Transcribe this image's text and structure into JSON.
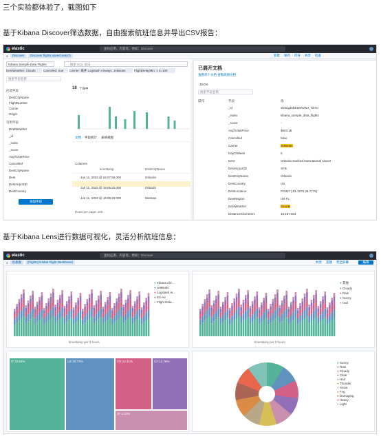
{
  "intro": "三个实验都体验了，截图如下",
  "section1": "基于Kibana Discover筛选数据，自由搜索航班信息并导出CSV报告：",
  "section2": "基于Kibana Lens进行数据可视化，灵活分析航班信息：",
  "kibana": {
    "brand": "elastic",
    "search_placeholder": "查找应用、内容等。例如：Discover",
    "breadcrumb_root": "Discover",
    "breadcrumb_page": "Discover flights saved search",
    "dashboard_crumb": "[Flights] Global Flight Dashboard",
    "dashboard_root": "仪表板",
    "top_links": [
      "新建",
      "保存",
      "打开",
      "共享",
      "检查"
    ],
    "dash_links": [
      "共享",
      "克隆",
      "完全屏幕"
    ],
    "edit_button": "编辑",
    "index_pattern": "Kibana Sample Data Flights",
    "query_placeholder": "搜索 KQL 语法",
    "filter_field": "搜索字段名称",
    "filters": [
      "DestWeather: Clouds",
      "Canceled: true",
      "Carrier: 离开 Logstash Airways, JetBeats",
      "FlightDelayMin: 1 to 100"
    ],
    "selected_header": "已选字段",
    "selected_fields": [
      "DestCityName",
      "FlightNumber",
      "Carrier",
      "Origin"
    ],
    "available_header": "可用字段",
    "available_fields": [
      "DestWeather",
      "_id",
      "_index",
      "_score",
      "AvgTicketPrice",
      "Cancelled",
      "DestCityName",
      "Dest",
      "DestAirportID",
      "DestCountry"
    ],
    "add_field": "添加字段",
    "hit_count": "18",
    "hit_label": "个命中",
    "doc_tabs": [
      "文档",
      "字段统计",
      "表格视图"
    ],
    "doc_columns": [
      "Columns",
      "Sort fields",
      "timestamp",
      "DestCityName",
      "Flight"
    ],
    "rows": [
      {
        "time": "Jun 11, 2023 @ 16:07:56.000",
        "city": "Orlando"
      },
      {
        "time": "Jun 11, 2023 @ 18:05:20.000",
        "city": "Orlando"
      },
      {
        "time": "Jun 11, 2023 @ 16:05:20.000",
        "city": "Warsaw"
      }
    ],
    "rows_per_page": "Rows per page: 100",
    "flyout": {
      "title": "已展开文档",
      "subtitle": "查看单个文档  查看周围文档",
      "tabs": [
        "表",
        "JSON"
      ],
      "filter_ph": "搜索字段名称",
      "col_action": "操作",
      "col_field": "字段",
      "col_value": "值",
      "fields": [
        {
          "k": "_id",
          "v": "sN4ug4kB61ERoWJ_ToHU"
        },
        {
          "k": "_index",
          "v": "kibana_sample_data_flights"
        },
        {
          "k": "_score",
          "v": "-"
        },
        {
          "k": "AvgTicketPrice",
          "v": "$503.18"
        },
        {
          "k": "Cancelled",
          "v": "false"
        },
        {
          "k": "Carrier",
          "v": "JetBeats"
        },
        {
          "k": "DayOfWeek",
          "v": "6"
        },
        {
          "k": "Dest",
          "v": "Orlando Sanford International Airport"
        },
        {
          "k": "DestAirportID",
          "v": "SFB"
        },
        {
          "k": "DestCityName",
          "v": "Orlando"
        },
        {
          "k": "DestCountry",
          "v": "US"
        },
        {
          "k": "DestLocation",
          "v": "POINT (-81.3275 28.7776)"
        },
        {
          "k": "DestRegion",
          "v": "US-FL"
        },
        {
          "k": "DestWeather",
          "v": "Clouds"
        },
        {
          "k": "DistanceKilometers",
          "v": "13,167.664"
        }
      ]
    },
    "lens": {
      "legend_left": [
        "Kibana Airl...",
        "JetBeats",
        "Logstash Ai...",
        "ES-Air",
        "Flight Dela..."
      ],
      "legend_right": [
        "其他",
        "Cloudy",
        "Rain",
        "Sunny",
        "Hail"
      ],
      "treemap": [
        {
          "label": "IT 33.64%",
          "c": "#54b399"
        },
        {
          "label": "US 20.74%",
          "c": "#6092c0"
        },
        {
          "label": "CN 14.31%",
          "c": "#d36086"
        },
        {
          "label": "CA 12.76%",
          "c": "#9170b8"
        },
        {
          "label": "JP 4.13%",
          "c": "#ca8eae"
        }
      ],
      "pie_legend": [
        "Sunny",
        "Rain",
        "Cloudy",
        "Clear",
        "Hail",
        "Thunder",
        "Snow",
        "Fog",
        "Damaging",
        "Heavy",
        "Light"
      ],
      "x_axis": "timestamp per 3 hours"
    }
  },
  "colors": {
    "nav": "#25282f",
    "accent": "#0077cc",
    "green": "#54b399",
    "blue": "#6092c0",
    "pink": "#d36086",
    "purple": "#9170b8",
    "yellow": "#fec514"
  }
}
